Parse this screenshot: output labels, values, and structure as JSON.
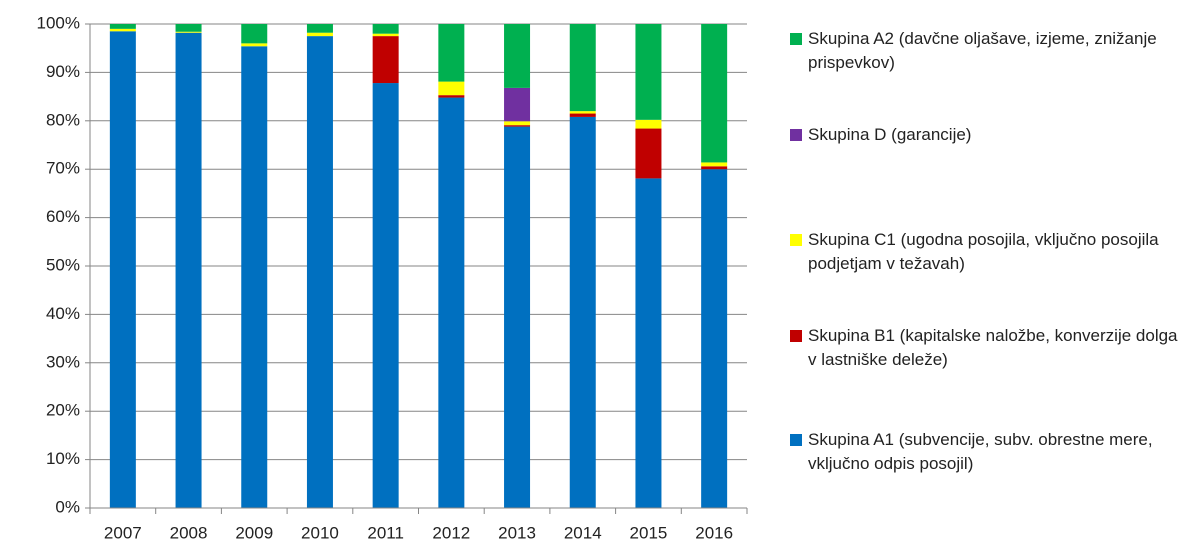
{
  "chart_data": {
    "type": "stacked_bar",
    "categories": [
      "2007",
      "2008",
      "2009",
      "2010",
      "2011",
      "2012",
      "2013",
      "2014",
      "2015",
      "2016"
    ],
    "series": [
      {
        "name": "Skupina A1 (subvencije, subv. obrestne mere, vključno odpis posojil)",
        "color": "#0070c0",
        "values": [
          98.5,
          98.2,
          95.4,
          97.5,
          87.8,
          84.8,
          78.8,
          80.8,
          68.1,
          70.0
        ]
      },
      {
        "name": "Skupina B1 (kapitalske naložbe, konverzije dolga v lastniške deleže)",
        "color": "#c00000",
        "values": [
          0,
          0,
          0,
          0,
          9.7,
          0.5,
          0.3,
          0.7,
          10.3,
          0.6
        ]
      },
      {
        "name": "Skupina C1 (ugodna posojila, vključno posojila podjetjam v težavah)",
        "color": "#ffff00",
        "values": [
          0.5,
          0.2,
          0.6,
          0.7,
          0.5,
          2.8,
          0.8,
          0.5,
          1.8,
          0.8
        ]
      },
      {
        "name": "Skupina D (garancije)",
        "color": "#7030a0",
        "values": [
          0,
          0,
          0,
          0,
          0,
          0,
          6.9,
          0,
          0,
          0
        ]
      },
      {
        "name": "Skupina A2 (davčne oljašave, izjeme, znižanje prispevkov)",
        "color": "#00b050",
        "values": [
          1.0,
          1.6,
          4.0,
          1.8,
          2.0,
          11.9,
          13.2,
          18.0,
          19.8,
          28.6
        ]
      }
    ],
    "ylim": [
      0,
      100
    ],
    "yticks": [
      {
        "value": 0,
        "label": "0%"
      },
      {
        "value": 10,
        "label": "10%"
      },
      {
        "value": 20,
        "label": "20%"
      },
      {
        "value": 30,
        "label": "30%"
      },
      {
        "value": 40,
        "label": "40%"
      },
      {
        "value": 50,
        "label": "50%"
      },
      {
        "value": 60,
        "label": "60%"
      },
      {
        "value": 70,
        "label": "70%"
      },
      {
        "value": 80,
        "label": "80%"
      },
      {
        "value": 90,
        "label": "90%"
      },
      {
        "value": 100,
        "label": "100%"
      }
    ],
    "grid": true,
    "legend": "right"
  }
}
